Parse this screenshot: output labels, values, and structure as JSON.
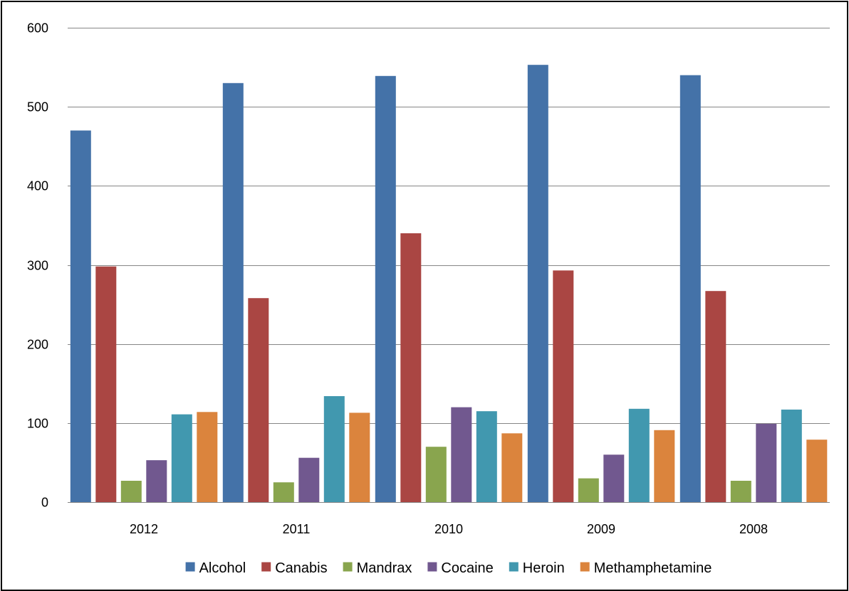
{
  "chart_data": {
    "type": "bar",
    "categories": [
      "2012",
      "2011",
      "2010",
      "2009",
      "2008"
    ],
    "series": [
      {
        "name": "Alcohol",
        "color": "#4472A8",
        "values": [
          470,
          530,
          539,
          553,
          540
        ]
      },
      {
        "name": "Canabis",
        "color": "#AA4643",
        "values": [
          298,
          258,
          340,
          293,
          267
        ]
      },
      {
        "name": "Mandrax",
        "color": "#89A54E",
        "values": [
          27,
          25,
          70,
          30,
          27
        ]
      },
      {
        "name": "Cocaine",
        "color": "#71588F",
        "values": [
          53,
          56,
          120,
          60,
          99
        ]
      },
      {
        "name": "Heroin",
        "color": "#4198AF",
        "values": [
          111,
          134,
          115,
          118,
          117
        ]
      },
      {
        "name": "Methamphetamine",
        "color": "#DB843D",
        "values": [
          114,
          113,
          87,
          91,
          79
        ]
      }
    ],
    "ylim": [
      0,
      600
    ],
    "yticks": [
      0,
      100,
      200,
      300,
      400,
      500,
      600
    ],
    "grid": true,
    "legend_position": "bottom"
  }
}
